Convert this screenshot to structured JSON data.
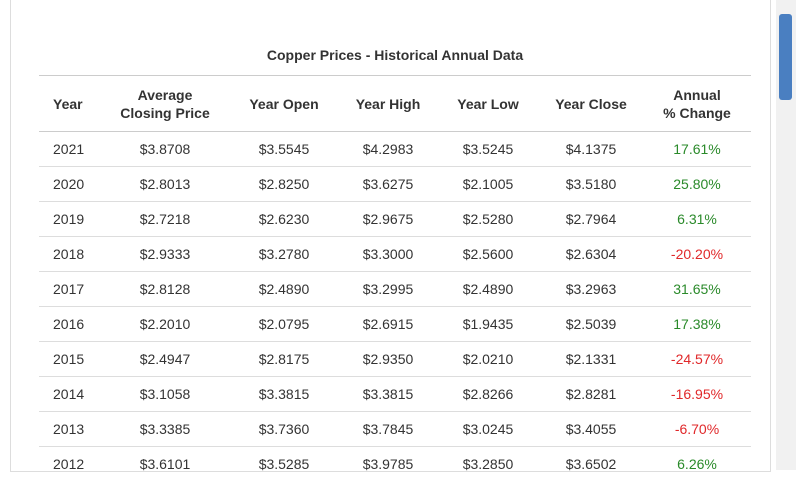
{
  "title": "Copper Prices - Historical Annual Data",
  "table": {
    "columns": [
      "Year",
      "Average\nClosing Price",
      "Year Open",
      "Year High",
      "Year Low",
      "Year Close",
      "Annual\n% Change"
    ],
    "rows": [
      [
        "2021",
        "$3.8708",
        "$3.5545",
        "$4.2983",
        "$3.5245",
        "$4.1375",
        "17.61%"
      ],
      [
        "2020",
        "$2.8013",
        "$2.8250",
        "$3.6275",
        "$2.1005",
        "$3.5180",
        "25.80%"
      ],
      [
        "2019",
        "$2.7218",
        "$2.6230",
        "$2.9675",
        "$2.5280",
        "$2.7964",
        "6.31%"
      ],
      [
        "2018",
        "$2.9333",
        "$3.2780",
        "$3.3000",
        "$2.5600",
        "$2.6304",
        "-20.20%"
      ],
      [
        "2017",
        "$2.8128",
        "$2.4890",
        "$3.2995",
        "$2.4890",
        "$3.2963",
        "31.65%"
      ],
      [
        "2016",
        "$2.2010",
        "$2.0795",
        "$2.6915",
        "$1.9435",
        "$2.5039",
        "17.38%"
      ],
      [
        "2015",
        "$2.4947",
        "$2.8175",
        "$2.9350",
        "$2.0210",
        "$2.1331",
        "-24.57%"
      ],
      [
        "2014",
        "$3.1058",
        "$3.3815",
        "$3.3815",
        "$2.8266",
        "$2.8281",
        "-16.95%"
      ],
      [
        "2013",
        "$3.3385",
        "$3.7360",
        "$3.7845",
        "$3.0245",
        "$3.4055",
        "-6.70%"
      ],
      [
        "2012",
        "$3.6101",
        "$3.5285",
        "$3.9785",
        "$3.2850",
        "$3.6502",
        "6.26%"
      ]
    ],
    "change_colors": {
      "positive": "#2a8a2a",
      "negative": "#e0282a"
    }
  }
}
